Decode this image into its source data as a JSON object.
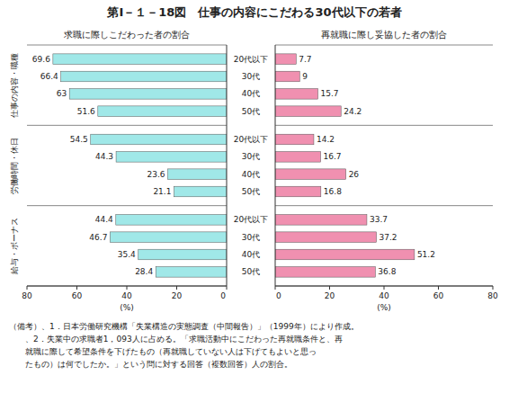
{
  "chart_data": {
    "type": "bar",
    "orientation": "horizontal",
    "title": "第Ⅰ－１－18図　仕事の内容にこだわる30代以下の若者",
    "categories": [
      "20代以下",
      "30代",
      "40代",
      "50代"
    ],
    "groups": [
      "仕事の内容・職種",
      "労働時間・休日",
      "給与・ボーナス"
    ],
    "series": [
      {
        "name": "求職に際しこだわった者の割合",
        "color": "#a0e8e8",
        "values": [
          [
            69.6,
            66.4,
            63.0,
            51.6
          ],
          [
            54.5,
            44.3,
            23.6,
            21.1
          ],
          [
            44.4,
            46.7,
            35.4,
            28.4
          ]
        ]
      },
      {
        "name": "再就職に際し妥協した者の割合",
        "color": "#f090b0",
        "values": [
          [
            7.7,
            9.0,
            15.7,
            24.2
          ],
          [
            14.2,
            16.7,
            26.0,
            16.8
          ],
          [
            33.7,
            37.2,
            51.2,
            36.8
          ]
        ]
      }
    ],
    "xlim": [
      0,
      80
    ],
    "xticks": [
      0,
      20,
      40,
      60,
      80
    ],
    "xlabel": "(%)",
    "data_labels": true,
    "annotations": [
      "（備考）、1．日本労働研究機構「失業構造の実態調査（中間報告）」（1999年）により作成。",
      "　　、2．失業中の求職者1，093人に占める。「求職活動中にこだわった再就職条件と、再",
      "　　就職に際して希望条件を下げたもの（再就職していない人は下げてもよいと思っ",
      "　　たもの）は何でしたか。」という問に対する回答（複数回答）人の割合。"
    ]
  }
}
